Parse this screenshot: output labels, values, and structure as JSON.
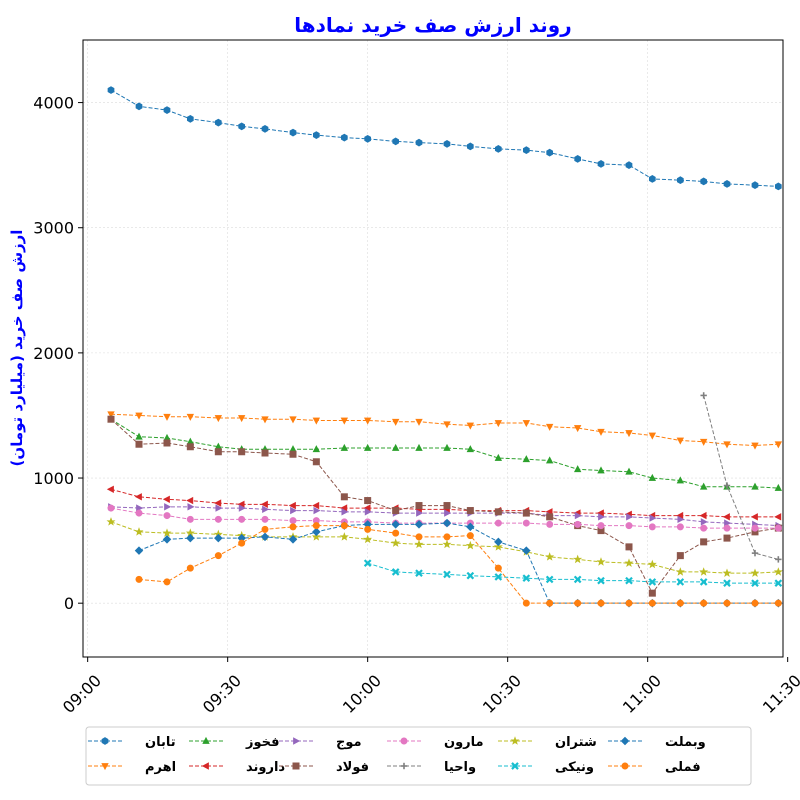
{
  "chart_data": {
    "type": "line",
    "title": "روند ارزش صف خرید نمادها",
    "title_color": "#0000ff",
    "xlabel": "",
    "ylabel": "ارزش صف خرید (میلیارد تومان)",
    "ylabel_color": "#0000ff",
    "x_tick_labels": [
      "09:00",
      "09:30",
      "10:00",
      "10:30",
      "11:00",
      "11:30"
    ],
    "x_tick_values": [
      0,
      30,
      60,
      90,
      120,
      150
    ],
    "y_tick_values": [
      0,
      1000,
      2000,
      3000,
      4000
    ],
    "y_tick_labels": [
      "0",
      "1000",
      "2000",
      "3000",
      "4000"
    ],
    "xlim": [
      -1,
      149
    ],
    "ylim": [
      -430,
      4500
    ],
    "grid": true,
    "legend_position": "bottom",
    "series": [
      {
        "name": "تابان",
        "color": "#1f77b4",
        "marker": "hexagon",
        "x": [
          5,
          11,
          17,
          22,
          28,
          33,
          38,
          44,
          49,
          55,
          60,
          66,
          71,
          77,
          82,
          88,
          94,
          99,
          105,
          110,
          116,
          121,
          127,
          132,
          137,
          143,
          148
        ],
        "y": [
          4100,
          3970,
          3940,
          3870,
          3840,
          3810,
          3790,
          3760,
          3740,
          3720,
          3710,
          3690,
          3680,
          3670,
          3650,
          3630,
          3620,
          3600,
          3550,
          3510,
          3500,
          3390,
          3380,
          3370,
          3350,
          3340,
          3330
        ]
      },
      {
        "name": "اهرم",
        "color": "#ff7f0e",
        "marker": "triangle-down",
        "x": [
          5,
          11,
          17,
          22,
          28,
          33,
          38,
          44,
          49,
          55,
          60,
          66,
          71,
          77,
          82,
          88,
          94,
          99,
          105,
          110,
          116,
          121,
          127,
          132,
          137,
          143,
          148
        ],
        "y": [
          1510,
          1500,
          1490,
          1490,
          1480,
          1480,
          1470,
          1470,
          1460,
          1460,
          1460,
          1450,
          1450,
          1430,
          1420,
          1440,
          1440,
          1410,
          1400,
          1370,
          1360,
          1340,
          1300,
          1290,
          1270,
          1260,
          1270
        ]
      },
      {
        "name": "فخوز",
        "color": "#2ca02c",
        "marker": "triangle-up",
        "x": [
          5,
          11,
          17,
          22,
          28,
          33,
          38,
          44,
          49,
          55,
          60,
          66,
          71,
          77,
          82,
          88,
          94,
          99,
          105,
          110,
          116,
          121,
          127,
          132,
          137,
          143,
          148
        ],
        "y": [
          1470,
          1330,
          1320,
          1290,
          1250,
          1230,
          1230,
          1230,
          1230,
          1240,
          1240,
          1240,
          1240,
          1240,
          1230,
          1160,
          1150,
          1140,
          1070,
          1060,
          1050,
          1000,
          980,
          930,
          930,
          930,
          920
        ]
      },
      {
        "name": "داروند",
        "color": "#d62728",
        "marker": "triangle-left",
        "x": [
          5,
          11,
          17,
          22,
          28,
          33,
          38,
          44,
          49,
          55,
          60,
          66,
          71,
          77,
          82,
          88,
          94,
          99,
          105,
          110,
          116,
          121,
          127,
          132,
          137,
          143,
          148
        ],
        "y": [
          910,
          850,
          830,
          820,
          800,
          790,
          790,
          780,
          780,
          760,
          760,
          760,
          750,
          750,
          740,
          740,
          740,
          730,
          720,
          720,
          710,
          700,
          700,
          700,
          690,
          690,
          690
        ]
      },
      {
        "name": "موج",
        "color": "#9467bd",
        "marker": "triangle-right",
        "x": [
          5,
          11,
          17,
          22,
          28,
          33,
          38,
          44,
          49,
          55,
          60,
          66,
          71,
          77,
          82,
          88,
          94,
          99,
          105,
          110,
          116,
          121,
          127,
          132,
          137,
          143,
          148
        ],
        "y": [
          770,
          760,
          770,
          770,
          760,
          760,
          750,
          740,
          740,
          730,
          730,
          720,
          720,
          720,
          720,
          720,
          720,
          700,
          700,
          690,
          690,
          680,
          670,
          650,
          640,
          630,
          620
        ]
      },
      {
        "name": "فولاد",
        "color": "#8c564b",
        "marker": "square",
        "x": [
          5,
          11,
          17,
          22,
          28,
          33,
          38,
          44,
          49,
          55,
          60,
          66,
          71,
          77,
          82,
          88,
          94,
          99,
          105,
          110,
          116,
          121,
          127,
          132,
          137,
          143,
          148
        ],
        "y": [
          1470,
          1270,
          1280,
          1250,
          1210,
          1210,
          1200,
          1190,
          1130,
          850,
          820,
          740,
          780,
          780,
          740,
          730,
          720,
          690,
          620,
          580,
          450,
          80,
          380,
          490,
          520,
          570,
          600
        ]
      },
      {
        "name": "مارون",
        "color": "#e377c2",
        "marker": "circle",
        "x": [
          5,
          11,
          17,
          22,
          28,
          33,
          38,
          44,
          49,
          55,
          60,
          66,
          71,
          77,
          82,
          88,
          94,
          99,
          105,
          110,
          116,
          121,
          127,
          132,
          137,
          143,
          148
        ],
        "y": [
          760,
          720,
          700,
          670,
          670,
          670,
          670,
          660,
          660,
          650,
          650,
          640,
          640,
          640,
          640,
          640,
          640,
          630,
          630,
          620,
          620,
          610,
          610,
          600,
          600,
          600,
          600
        ]
      },
      {
        "name": "واحیا",
        "color": "#7f7f7f",
        "marker": "plus",
        "x": [
          132,
          137,
          143,
          148
        ],
        "y": [
          1660,
          940,
          400,
          350
        ]
      },
      {
        "name": "شتران",
        "color": "#bcbd22",
        "marker": "star",
        "x": [
          5,
          11,
          17,
          22,
          28,
          33,
          38,
          44,
          49,
          55,
          60,
          66,
          71,
          77,
          82,
          88,
          94,
          99,
          105,
          110,
          116,
          121,
          127,
          132,
          137,
          143,
          148
        ],
        "y": [
          650,
          570,
          560,
          560,
          550,
          540,
          530,
          530,
          530,
          530,
          510,
          480,
          470,
          470,
          460,
          450,
          410,
          370,
          350,
          330,
          320,
          310,
          250,
          250,
          240,
          240,
          250
        ]
      },
      {
        "name": "ونیکی",
        "color": "#17becf",
        "marker": "x",
        "x": [
          60,
          66,
          71,
          77,
          82,
          88,
          94,
          99,
          105,
          110,
          116,
          121,
          127,
          132,
          137,
          143,
          148
        ],
        "y": [
          320,
          250,
          240,
          230,
          220,
          210,
          200,
          190,
          190,
          180,
          180,
          170,
          170,
          170,
          160,
          160,
          160
        ]
      },
      {
        "name": "وبملت",
        "color": "#1f77b4",
        "marker": "diamond",
        "x": [
          11,
          17,
          22,
          28,
          33,
          38,
          44,
          49,
          55,
          60,
          66,
          71,
          77,
          82,
          88,
          94,
          99,
          105,
          110,
          116,
          121,
          127,
          132,
          137,
          143,
          148
        ],
        "y": [
          420,
          510,
          520,
          520,
          520,
          530,
          510,
          570,
          620,
          630,
          630,
          630,
          640,
          610,
          490,
          420,
          0,
          0,
          0,
          0,
          0,
          0,
          0,
          0,
          0,
          0
        ]
      },
      {
        "name": "فملی",
        "color": "#ff7f0e",
        "marker": "circle",
        "x": [
          11,
          17,
          22,
          28,
          33,
          38,
          44,
          49,
          55,
          60,
          66,
          71,
          77,
          82,
          88,
          94,
          99,
          105,
          110,
          116,
          121,
          127,
          132,
          137,
          143,
          148
        ],
        "y": [
          190,
          170,
          280,
          380,
          480,
          590,
          610,
          620,
          620,
          590,
          560,
          530,
          530,
          540,
          280,
          0,
          0,
          0,
          0,
          0,
          0,
          0,
          0,
          0,
          0,
          0
        ]
      }
    ]
  }
}
